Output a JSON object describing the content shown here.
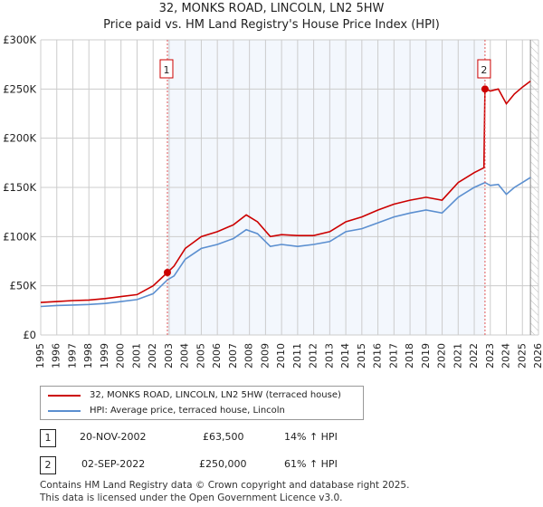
{
  "title": "32, MONKS ROAD, LINCOLN, LN2 5HW",
  "subtitle": "Price paid vs. HM Land Registry's House Price Index (HPI)",
  "chart_data": {
    "type": "line",
    "title": "32, MONKS ROAD, LINCOLN, LN2 5HW",
    "subtitle": "Price paid vs. HM Land Registry's House Price Index (HPI)",
    "xlim": [
      1995,
      2026
    ],
    "ylim": [
      0,
      300000
    ],
    "x_ticks": [
      "1995",
      "1996",
      "1997",
      "1998",
      "1999",
      "2000",
      "2001",
      "2002",
      "2003",
      "2004",
      "2005",
      "2006",
      "2007",
      "2008",
      "2009",
      "2010",
      "2011",
      "2012",
      "2013",
      "2014",
      "2015",
      "2016",
      "2017",
      "2018",
      "2019",
      "2020",
      "2021",
      "2022",
      "2023",
      "2024",
      "2025",
      "2026"
    ],
    "y_ticks": [
      {
        "v": 0,
        "label": "£0"
      },
      {
        "v": 50000,
        "label": "£50K"
      },
      {
        "v": 100000,
        "label": "£100K"
      },
      {
        "v": 150000,
        "label": "£150K"
      },
      {
        "v": 200000,
        "label": "£200K"
      },
      {
        "v": 250000,
        "label": "£250K"
      },
      {
        "v": 300000,
        "label": "£300K"
      }
    ],
    "grid": true,
    "series": [
      {
        "name": "32, MONKS ROAD, LINCOLN, LN2 5HW (terraced house)",
        "color": "#cc0000",
        "x": [
          1995,
          1996,
          1997,
          1998,
          1999,
          2000,
          2001,
          2002,
          2002.89,
          2003.3,
          2004,
          2005,
          2006,
          2007,
          2007.8,
          2008.5,
          2009.3,
          2010,
          2011,
          2012,
          2013,
          2014,
          2015,
          2016,
          2017,
          2018,
          2019,
          2020,
          2021,
          2022,
          2022.6,
          2022.67,
          2023,
          2023.5,
          2024,
          2024.5,
          2025,
          2025.5
        ],
        "y": [
          33000,
          34000,
          35000,
          35500,
          37000,
          39000,
          41000,
          50000,
          63500,
          70000,
          88000,
          100000,
          105000,
          112000,
          122000,
          115000,
          100000,
          102000,
          101000,
          101000,
          105000,
          115000,
          120000,
          127000,
          133000,
          137000,
          140000,
          137000,
          155000,
          165000,
          170000,
          250000,
          248000,
          250000,
          235000,
          245000,
          252000,
          258000
        ]
      },
      {
        "name": "HPI: Average price, terraced house, Lincoln",
        "color": "#5b8fd0",
        "x": [
          1995,
          1996,
          1997,
          1998,
          1999,
          2000,
          2001,
          2002,
          2002.89,
          2003.3,
          2004,
          2005,
          2006,
          2007,
          2007.8,
          2008.5,
          2009.3,
          2010,
          2011,
          2012,
          2013,
          2014,
          2015,
          2016,
          2017,
          2018,
          2019,
          2020,
          2021,
          2022,
          2022.67,
          2023,
          2023.5,
          2024,
          2024.5,
          2025,
          2025.5
        ],
        "y": [
          29000,
          30000,
          30500,
          31000,
          32000,
          34000,
          36000,
          42000,
          56000,
          60000,
          77000,
          88000,
          92000,
          98000,
          107000,
          103000,
          90000,
          92000,
          90000,
          92000,
          95000,
          105000,
          108000,
          114000,
          120000,
          124000,
          127000,
          124000,
          140000,
          150000,
          155000,
          152000,
          153000,
          143000,
          150000,
          155000,
          160000
        ]
      }
    ],
    "markers": [
      {
        "label": "1",
        "x": 2002.89,
        "y": 63500
      },
      {
        "label": "2",
        "x": 2022.67,
        "y": 250000
      }
    ],
    "shaded_range": [
      2002.89,
      2022.67
    ],
    "hatched_from": 2025.5
  },
  "legend": [
    {
      "label": "32, MONKS ROAD, LINCOLN, LN2 5HW (terraced house)",
      "color": "#cc0000"
    },
    {
      "label": "HPI: Average price, terraced house, Lincoln",
      "color": "#5b8fd0"
    }
  ],
  "transactions": [
    {
      "num": "1",
      "date": "20-NOV-2002",
      "price": "£63,500",
      "hpi": "14% ↑ HPI"
    },
    {
      "num": "2",
      "date": "02-SEP-2022",
      "price": "£250,000",
      "hpi": "61% ↑ HPI"
    }
  ],
  "footer": {
    "line1": "Contains HM Land Registry data © Crown copyright and database right 2025.",
    "line2": "This data is licensed under the Open Government Licence v3.0."
  }
}
